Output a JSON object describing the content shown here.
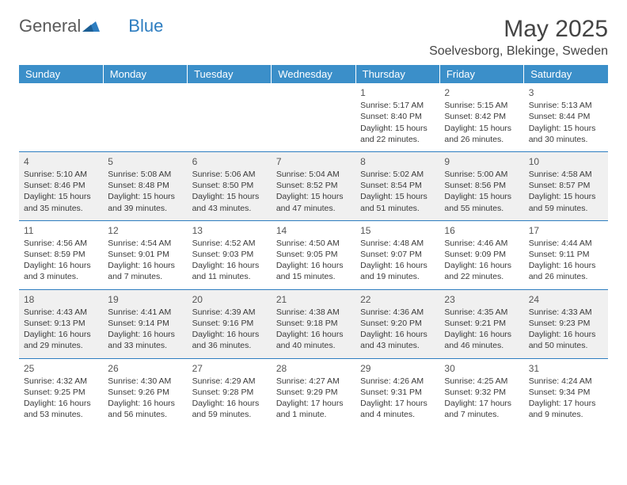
{
  "brand": {
    "part1": "General",
    "part2": "Blue"
  },
  "title": "May 2025",
  "location": "Soelvesborg, Blekinge, Sweden",
  "colors": {
    "header_bg": "#3b8fc9",
    "header_text": "#ffffff",
    "divider": "#2d7dc0",
    "shade_bg": "#f0f0f0",
    "text": "#3a3a3a",
    "logo_gray": "#5a5a5a",
    "logo_blue": "#2d7dc0"
  },
  "weekdays": [
    "Sunday",
    "Monday",
    "Tuesday",
    "Wednesday",
    "Thursday",
    "Friday",
    "Saturday"
  ],
  "weeks": [
    {
      "shaded": false,
      "days": [
        null,
        null,
        null,
        null,
        {
          "n": "1",
          "sr": "5:17 AM",
          "ss": "8:40 PM",
          "dl": "15 hours and 22 minutes."
        },
        {
          "n": "2",
          "sr": "5:15 AM",
          "ss": "8:42 PM",
          "dl": "15 hours and 26 minutes."
        },
        {
          "n": "3",
          "sr": "5:13 AM",
          "ss": "8:44 PM",
          "dl": "15 hours and 30 minutes."
        }
      ]
    },
    {
      "shaded": true,
      "days": [
        {
          "n": "4",
          "sr": "5:10 AM",
          "ss": "8:46 PM",
          "dl": "15 hours and 35 minutes."
        },
        {
          "n": "5",
          "sr": "5:08 AM",
          "ss": "8:48 PM",
          "dl": "15 hours and 39 minutes."
        },
        {
          "n": "6",
          "sr": "5:06 AM",
          "ss": "8:50 PM",
          "dl": "15 hours and 43 minutes."
        },
        {
          "n": "7",
          "sr": "5:04 AM",
          "ss": "8:52 PM",
          "dl": "15 hours and 47 minutes."
        },
        {
          "n": "8",
          "sr": "5:02 AM",
          "ss": "8:54 PM",
          "dl": "15 hours and 51 minutes."
        },
        {
          "n": "9",
          "sr": "5:00 AM",
          "ss": "8:56 PM",
          "dl": "15 hours and 55 minutes."
        },
        {
          "n": "10",
          "sr": "4:58 AM",
          "ss": "8:57 PM",
          "dl": "15 hours and 59 minutes."
        }
      ]
    },
    {
      "shaded": false,
      "days": [
        {
          "n": "11",
          "sr": "4:56 AM",
          "ss": "8:59 PM",
          "dl": "16 hours and 3 minutes."
        },
        {
          "n": "12",
          "sr": "4:54 AM",
          "ss": "9:01 PM",
          "dl": "16 hours and 7 minutes."
        },
        {
          "n": "13",
          "sr": "4:52 AM",
          "ss": "9:03 PM",
          "dl": "16 hours and 11 minutes."
        },
        {
          "n": "14",
          "sr": "4:50 AM",
          "ss": "9:05 PM",
          "dl": "16 hours and 15 minutes."
        },
        {
          "n": "15",
          "sr": "4:48 AM",
          "ss": "9:07 PM",
          "dl": "16 hours and 19 minutes."
        },
        {
          "n": "16",
          "sr": "4:46 AM",
          "ss": "9:09 PM",
          "dl": "16 hours and 22 minutes."
        },
        {
          "n": "17",
          "sr": "4:44 AM",
          "ss": "9:11 PM",
          "dl": "16 hours and 26 minutes."
        }
      ]
    },
    {
      "shaded": true,
      "days": [
        {
          "n": "18",
          "sr": "4:43 AM",
          "ss": "9:13 PM",
          "dl": "16 hours and 29 minutes."
        },
        {
          "n": "19",
          "sr": "4:41 AM",
          "ss": "9:14 PM",
          "dl": "16 hours and 33 minutes."
        },
        {
          "n": "20",
          "sr": "4:39 AM",
          "ss": "9:16 PM",
          "dl": "16 hours and 36 minutes."
        },
        {
          "n": "21",
          "sr": "4:38 AM",
          "ss": "9:18 PM",
          "dl": "16 hours and 40 minutes."
        },
        {
          "n": "22",
          "sr": "4:36 AM",
          "ss": "9:20 PM",
          "dl": "16 hours and 43 minutes."
        },
        {
          "n": "23",
          "sr": "4:35 AM",
          "ss": "9:21 PM",
          "dl": "16 hours and 46 minutes."
        },
        {
          "n": "24",
          "sr": "4:33 AM",
          "ss": "9:23 PM",
          "dl": "16 hours and 50 minutes."
        }
      ]
    },
    {
      "shaded": false,
      "days": [
        {
          "n": "25",
          "sr": "4:32 AM",
          "ss": "9:25 PM",
          "dl": "16 hours and 53 minutes."
        },
        {
          "n": "26",
          "sr": "4:30 AM",
          "ss": "9:26 PM",
          "dl": "16 hours and 56 minutes."
        },
        {
          "n": "27",
          "sr": "4:29 AM",
          "ss": "9:28 PM",
          "dl": "16 hours and 59 minutes."
        },
        {
          "n": "28",
          "sr": "4:27 AM",
          "ss": "9:29 PM",
          "dl": "17 hours and 1 minute."
        },
        {
          "n": "29",
          "sr": "4:26 AM",
          "ss": "9:31 PM",
          "dl": "17 hours and 4 minutes."
        },
        {
          "n": "30",
          "sr": "4:25 AM",
          "ss": "9:32 PM",
          "dl": "17 hours and 7 minutes."
        },
        {
          "n": "31",
          "sr": "4:24 AM",
          "ss": "9:34 PM",
          "dl": "17 hours and 9 minutes."
        }
      ]
    }
  ],
  "labels": {
    "sunrise": "Sunrise:",
    "sunset": "Sunset:",
    "daylight": "Daylight:"
  }
}
